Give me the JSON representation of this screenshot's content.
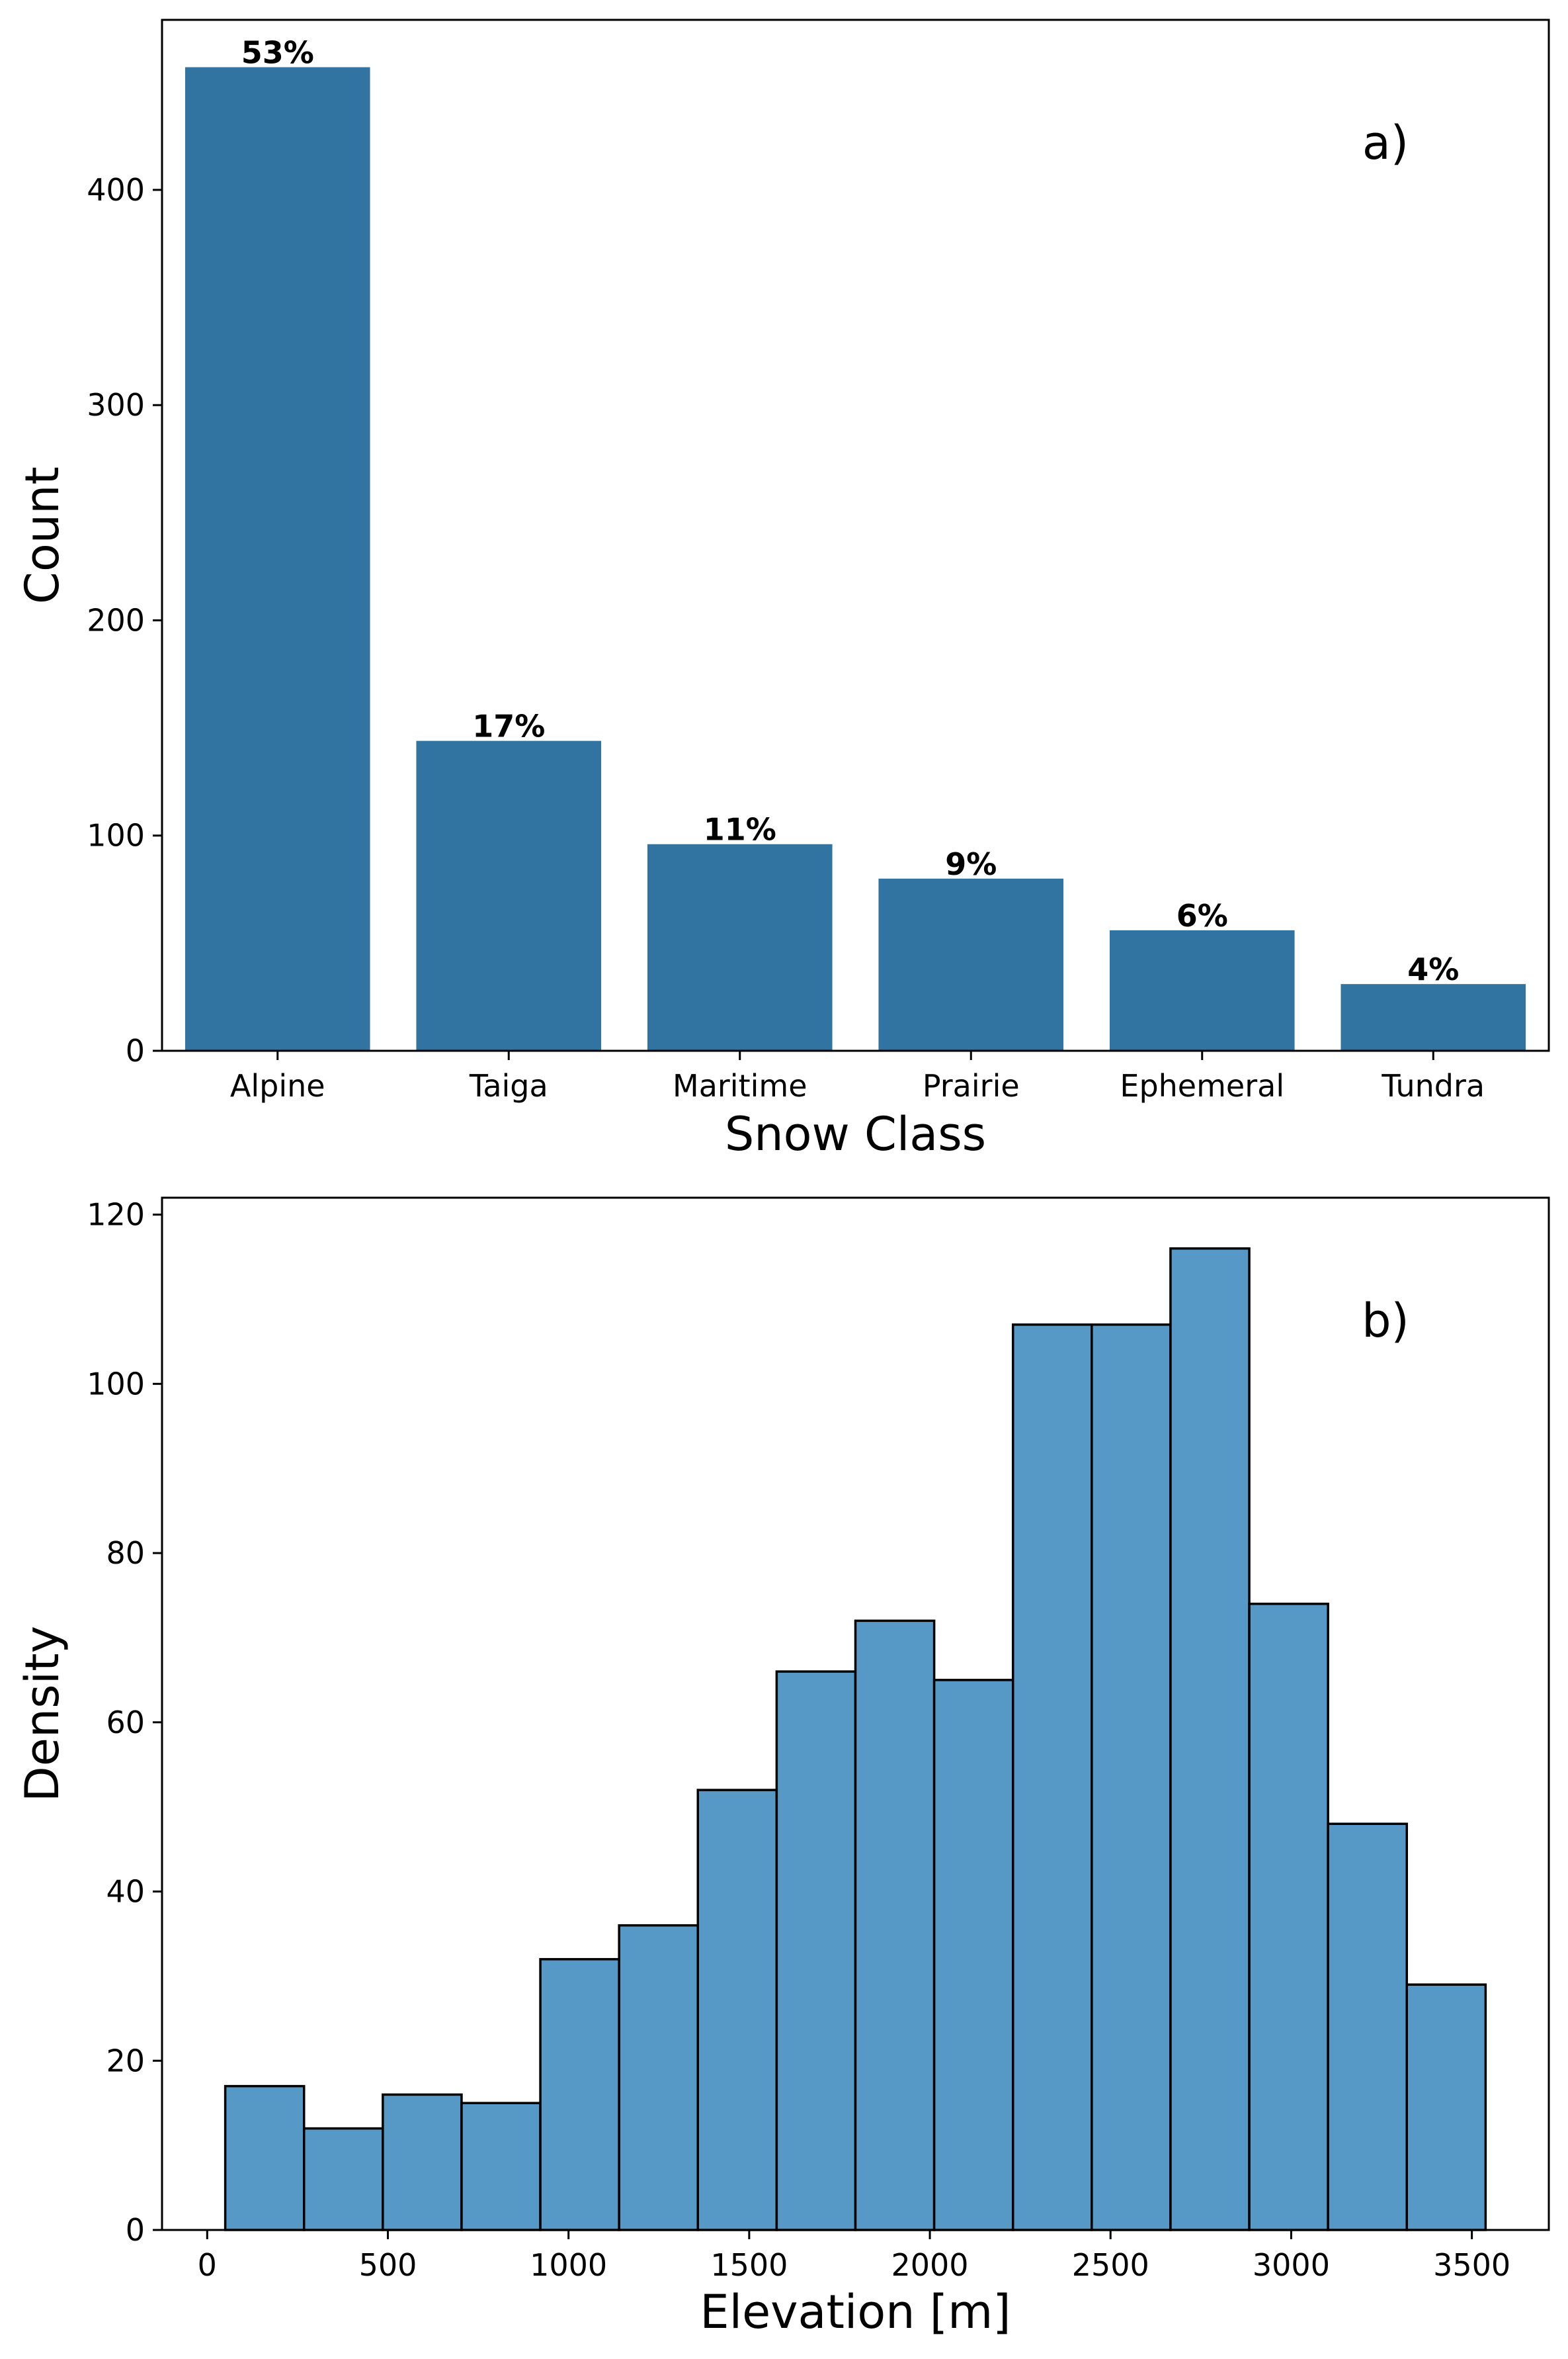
{
  "colors": {
    "bar_fill": "#3274a1",
    "hist_fill": "#5799c6",
    "hist_edge": "#000000",
    "axes": "#000000",
    "background": "#ffffff"
  },
  "chart_data": [
    {
      "type": "bar",
      "panel_tag": "a)",
      "categories": [
        "Alpine",
        "Taiga",
        "Maritime",
        "Prairie",
        "Ephemeral",
        "Tundra"
      ],
      "values": [
        457,
        144,
        96,
        80,
        56,
        31
      ],
      "bar_labels": [
        "53%",
        "17%",
        "11%",
        "9%",
        "6%",
        "4%"
      ],
      "xlabel": "Snow Class",
      "ylabel": "Count",
      "ylim": [
        0,
        479
      ],
      "yticks": [
        0,
        100,
        200,
        300,
        400
      ],
      "grid": false,
      "legend": "none"
    },
    {
      "type": "histogram",
      "panel_tag": "b)",
      "bin_edges": [
        50,
        268,
        486,
        704,
        922,
        1140,
        1358,
        1576,
        1794,
        2012,
        2230,
        2448,
        2666,
        2884,
        3102,
        3320,
        3538
      ],
      "values": [
        17,
        12,
        16,
        15,
        32,
        36,
        52,
        66,
        72,
        65,
        107,
        107,
        116,
        74,
        48,
        29
      ],
      "xlabel": "Elevation [m]",
      "ylabel": "Density",
      "xlim": [
        -125,
        3713
      ],
      "ylim": [
        0,
        122
      ],
      "xticks": [
        0,
        500,
        1000,
        1500,
        2000,
        2500,
        3000,
        3500
      ],
      "yticks": [
        0,
        20,
        40,
        60,
        80,
        100,
        120
      ],
      "grid": false,
      "legend": "none"
    }
  ]
}
